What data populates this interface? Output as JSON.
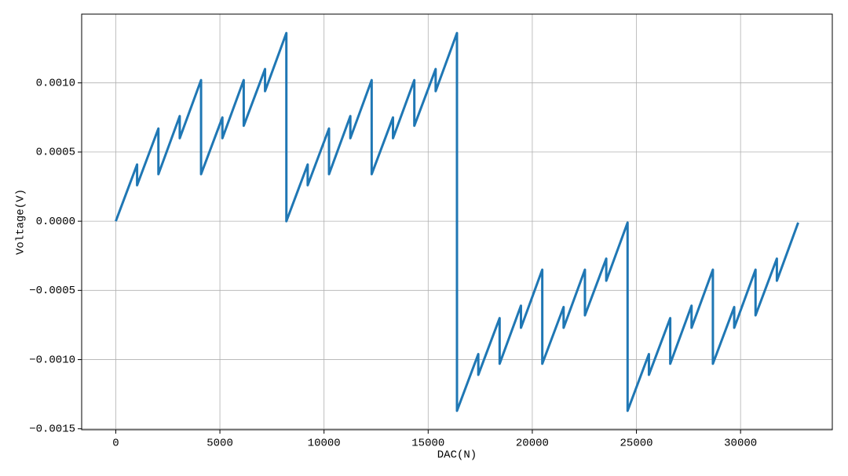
{
  "chart_data": {
    "type": "line",
    "x_label": "DAC(N)",
    "y_label": "Voltage(V)",
    "x": [
      0,
      1023,
      1024,
      2047,
      2048,
      3071,
      3072,
      4095,
      4096,
      5119,
      5120,
      6143,
      6144,
      7167,
      7168,
      8191,
      8192,
      9215,
      9216,
      10239,
      10240,
      11263,
      11264,
      12287,
      12288,
      13311,
      13312,
      14335,
      14336,
      15359,
      15360,
      16383,
      16384,
      17407,
      17408,
      18431,
      18432,
      19455,
      19456,
      20479,
      20480,
      21503,
      21504,
      22527,
      22528,
      23551,
      23552,
      24575,
      24576,
      25599,
      25600,
      26623,
      26624,
      27647,
      27648,
      28671,
      28672,
      29695,
      29696,
      30719,
      30720,
      31743,
      31744,
      32767
    ],
    "series": [
      {
        "name": "Voltage",
        "color": "#1f77b4",
        "values": [
          0,
          0.00041,
          0.00026,
          0.00067,
          0.00034,
          0.00076,
          0.0006,
          0.00102,
          0.00034,
          0.00075,
          0.0006,
          0.00102,
          0.00069,
          0.0011,
          0.00094,
          0.00136,
          0,
          0.00041,
          0.00026,
          0.00067,
          0.00034,
          0.00076,
          0.0006,
          0.00102,
          0.00034,
          0.00075,
          0.0006,
          0.00102,
          0.00069,
          0.0011,
          0.00094,
          0.00136,
          -0.00137,
          -0.00096,
          -0.00111,
          -0.0007,
          -0.00103,
          -0.00061,
          -0.00077,
          -0.00035,
          -0.00103,
          -0.00062,
          -0.00077,
          -0.00035,
          -0.00068,
          -0.00027,
          -0.00043,
          -1e-05,
          -0.00137,
          -0.00096,
          -0.00111,
          -0.0007,
          -0.00103,
          -0.00061,
          -0.00077,
          -0.00035,
          -0.00103,
          -0.00062,
          -0.00077,
          -0.00035,
          -0.00068,
          -0.00027,
          -0.00043,
          -1e-05
        ]
      }
    ],
    "xlim": [
      -1638,
      34405
    ],
    "xticks": [
      0,
      5000,
      10000,
      15000,
      20000,
      25000,
      30000
    ],
    "ylim": [
      -0.001507,
      0.001497
    ],
    "yticks": [
      {
        "value": -0.0015,
        "label": "−0.0015"
      },
      {
        "value": -0.001,
        "label": "−0.0010"
      },
      {
        "value": -0.0005,
        "label": "−0.0005"
      },
      {
        "value": 0,
        "label": "0.0000"
      },
      {
        "value": 0.0005,
        "label": "0.0005"
      },
      {
        "value": 0.001,
        "label": "0.0010"
      }
    ],
    "grid": true
  }
}
